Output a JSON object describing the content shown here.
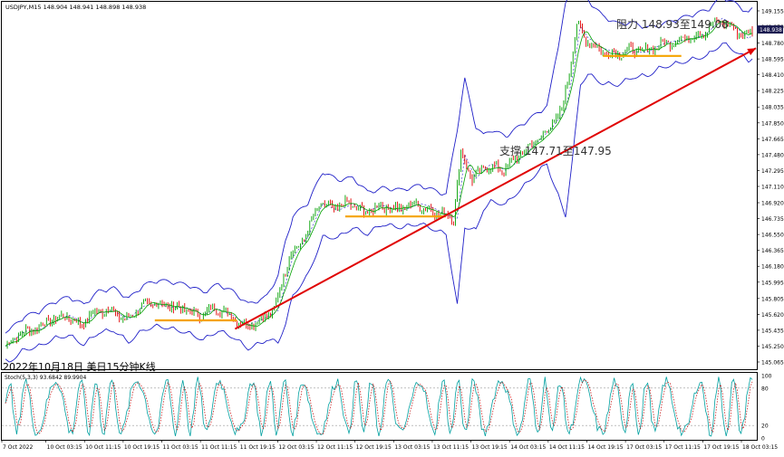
{
  "header": {
    "symbol_line": "USDJPY,M15  148.904 148.941 148.898 148.938"
  },
  "annotations": {
    "caption": "2022年10月18日 美日15分钟K线",
    "resistance": "阻力 148.93至149.08",
    "support": "支撑 147.71至147.95"
  },
  "colors": {
    "bull": "#00a000",
    "bear": "#e00000",
    "band": "#2020c8",
    "sma": "#00a000",
    "trend": "#e00000",
    "level": "#f5a300",
    "stoch_main": "#00a0a0",
    "stoch_signal": "#c00000",
    "price_badge": "#1a1a50"
  },
  "chart_data": [
    {
      "type": "line",
      "title": "USDJPY,M15",
      "y_ticks": [
        "149.155",
        "148.970",
        "148.780",
        "148.595",
        "148.410",
        "148.225",
        "148.035",
        "147.850",
        "147.665",
        "147.480",
        "147.295",
        "147.110",
        "146.920",
        "146.735",
        "146.550",
        "146.365",
        "146.180",
        "145.995",
        "145.805",
        "145.620",
        "145.435",
        "145.250",
        "145.065"
      ],
      "ylim": [
        145.065,
        149.155
      ],
      "current_price": "148.938",
      "x_ticks": [
        "7 Oct 2022",
        "10 Oct 03:15",
        "10 Oct 11:15",
        "10 Oct 19:15",
        "11 Oct 03:15",
        "11 Oct 11:15",
        "11 Oct 19:15",
        "12 Oct 03:15",
        "12 Oct 11:15",
        "12 Oct 19:15",
        "13 Oct 03:15",
        "13 Oct 11:15",
        "13 Oct 19:15",
        "14 Oct 03:15",
        "14 Oct 11:15",
        "14 Oct 19:15",
        "17 Oct 03:15",
        "17 Oct 11:15",
        "17 Oct 19:15",
        "18 Oct 03:15"
      ],
      "price_path": [
        [
          0,
          145.25
        ],
        [
          8,
          145.4
        ],
        [
          16,
          145.45
        ],
        [
          24,
          145.55
        ],
        [
          32,
          145.6
        ],
        [
          40,
          145.5
        ],
        [
          48,
          145.65
        ],
        [
          56,
          145.68
        ],
        [
          64,
          145.55
        ],
        [
          72,
          145.7
        ],
        [
          80,
          145.75
        ],
        [
          88,
          145.72
        ],
        [
          96,
          145.68
        ],
        [
          104,
          145.6
        ],
        [
          112,
          145.7
        ],
        [
          120,
          145.62
        ],
        [
          128,
          145.48
        ],
        [
          136,
          145.55
        ],
        [
          144,
          145.68
        ],
        [
          152,
          146.3
        ],
        [
          160,
          146.5
        ],
        [
          168,
          146.9
        ],
        [
          176,
          146.85
        ],
        [
          184,
          146.92
        ],
        [
          192,
          146.8
        ],
        [
          200,
          146.88
        ],
        [
          210,
          146.85
        ],
        [
          220,
          146.9
        ],
        [
          232,
          146.8
        ],
        [
          240,
          146.75
        ],
        [
          244,
          147.5
        ],
        [
          250,
          147.2
        ],
        [
          258,
          147.35
        ],
        [
          266,
          147.3
        ],
        [
          274,
          147.45
        ],
        [
          282,
          147.6
        ],
        [
          290,
          147.75
        ],
        [
          298,
          148.0
        ],
        [
          302,
          148.45
        ],
        [
          306,
          149.0
        ],
        [
          310,
          148.85
        ],
        [
          318,
          148.7
        ],
        [
          326,
          148.65
        ],
        [
          334,
          148.7
        ],
        [
          342,
          148.68
        ],
        [
          350,
          148.75
        ],
        [
          358,
          148.8
        ],
        [
          366,
          148.85
        ],
        [
          374,
          148.9
        ],
        [
          382,
          149.05
        ],
        [
          390,
          148.95
        ],
        [
          396,
          148.85
        ],
        [
          400,
          148.938
        ]
      ],
      "bollinger_offsets": [
        [
          0,
          0.15
        ],
        [
          40,
          0.2
        ],
        [
          100,
          0.25
        ],
        [
          140,
          0.22
        ],
        [
          150,
          0.45
        ],
        [
          170,
          0.35
        ],
        [
          200,
          0.18
        ],
        [
          236,
          0.2
        ],
        [
          242,
          1.0
        ],
        [
          256,
          0.4
        ],
        [
          290,
          0.3
        ],
        [
          300,
          1.2
        ],
        [
          312,
          0.4
        ],
        [
          350,
          0.22
        ],
        [
          400,
          0.25
        ]
      ],
      "support_levels": [
        {
          "x": [
            80,
            124
          ],
          "y": 145.55
        },
        {
          "x": [
            182,
            236
          ],
          "y": 146.76
        },
        {
          "x": [
            320,
            362
          ],
          "y": 148.63
        }
      ],
      "trend_line": {
        "x": [
          123,
          402
        ],
        "y": [
          145.45,
          148.72
        ]
      }
    },
    {
      "type": "line",
      "title": "Stoch(5,3,3) 93.6842 89.9904",
      "series": [
        {
          "name": "main",
          "last": 93.6842
        },
        {
          "name": "signal",
          "last": 89.9904
        }
      ],
      "y_ticks": [
        "100",
        "80",
        "20",
        "0"
      ],
      "ylim": [
        0,
        100
      ],
      "levels": [
        20,
        80
      ]
    }
  ]
}
